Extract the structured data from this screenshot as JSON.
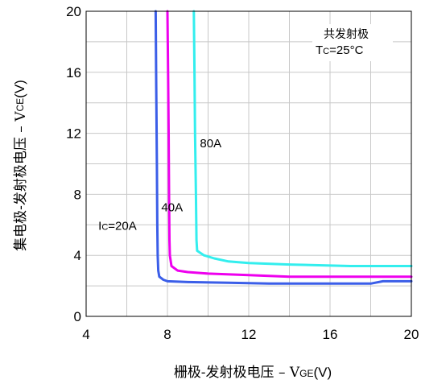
{
  "chart_data": {
    "type": "line",
    "xlabel_prefix": "栅极-发射极电压  –  V",
    "xlabel_sub": "GE",
    "xlabel_suffix": "(V)",
    "ylabel_prefix": "集电极-发射极电压  –  V",
    "ylabel_sub": "CE",
    "ylabel_suffix": "(V)",
    "xlim": [
      4,
      20
    ],
    "ylim": [
      0,
      20
    ],
    "x_ticks": [
      4,
      8,
      12,
      16,
      20
    ],
    "y_ticks": [
      0,
      4,
      8,
      12,
      16,
      20
    ],
    "grid": true,
    "legend_title": "共发射极",
    "legend_cond_prefix": "T",
    "legend_cond_sub": "C",
    "legend_cond_suffix": "=25°C",
    "series": [
      {
        "name": "20A",
        "label_prefix": "I",
        "label_sub": "C",
        "label_suffix": "=20A",
        "label_at": [
          4.6,
          6.0
        ],
        "color": "#3b5ee8",
        "points": [
          [
            7.42,
            20
          ],
          [
            7.45,
            15
          ],
          [
            7.48,
            10
          ],
          [
            7.5,
            6
          ],
          [
            7.52,
            4
          ],
          [
            7.55,
            3
          ],
          [
            7.6,
            2.6
          ],
          [
            7.8,
            2.4
          ],
          [
            8.0,
            2.3
          ],
          [
            9.0,
            2.25
          ],
          [
            11.0,
            2.2
          ],
          [
            13.0,
            2.15
          ],
          [
            16.0,
            2.15
          ],
          [
            18.0,
            2.15
          ],
          [
            18.6,
            2.3
          ],
          [
            20,
            2.3
          ]
        ]
      },
      {
        "name": "40A",
        "label_prefix": "",
        "label_sub": "",
        "label_suffix": "40A",
        "label_at": [
          7.7,
          7.2
        ],
        "color": "#ee00ee",
        "points": [
          [
            8.0,
            20
          ],
          [
            8.03,
            16
          ],
          [
            8.06,
            12
          ],
          [
            8.08,
            8
          ],
          [
            8.1,
            5
          ],
          [
            8.12,
            4
          ],
          [
            8.2,
            3.3
          ],
          [
            8.5,
            3.0
          ],
          [
            9.0,
            2.9
          ],
          [
            10.0,
            2.8
          ],
          [
            12.0,
            2.7
          ],
          [
            14.0,
            2.6
          ],
          [
            17.0,
            2.6
          ],
          [
            20,
            2.6
          ]
        ]
      },
      {
        "name": "80A",
        "label_prefix": "",
        "label_sub": "",
        "label_suffix": "80A",
        "label_at": [
          9.6,
          11.4
        ],
        "color": "#33eeee",
        "points": [
          [
            9.3,
            20
          ],
          [
            9.33,
            16
          ],
          [
            9.36,
            12
          ],
          [
            9.4,
            8
          ],
          [
            9.43,
            5
          ],
          [
            9.46,
            4.3
          ],
          [
            9.8,
            4.0
          ],
          [
            10.3,
            3.8
          ],
          [
            11.0,
            3.6
          ],
          [
            12.0,
            3.5
          ],
          [
            14.0,
            3.4
          ],
          [
            17.0,
            3.3
          ],
          [
            20,
            3.3
          ]
        ]
      }
    ]
  }
}
